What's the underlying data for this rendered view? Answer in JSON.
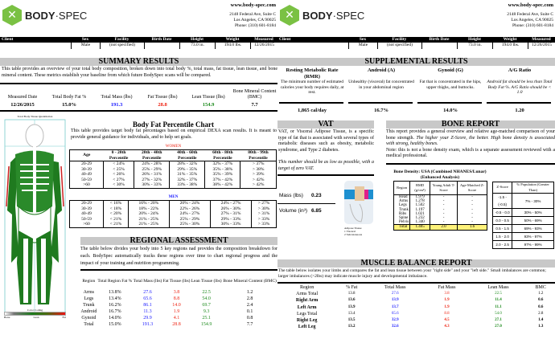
{
  "header": {
    "brand_bold": "BODY",
    "brand_light": "·SPEC",
    "website": "www.body-spec.com",
    "address1": "2148 Federal Ave, Suite C",
    "address2": "Los Angeles, CA 90025",
    "phone": "Phone: (310) 601-8184"
  },
  "client": {
    "headers": [
      "Client",
      "Sex",
      "Facility",
      "Birth Date",
      "Height",
      "Weight",
      "Measured"
    ],
    "values": [
      "",
      "Male",
      "(not specified)",
      "",
      "73.0 in.",
      "194.0 lbs.",
      "12/26/2015"
    ]
  },
  "summary": {
    "title": "SUMMARY RESULTS",
    "text": "This table provides an overview of your total body composition, broken down into total body %, total mass, fat tissue, lean tissue, and bone mineral content. These metrics establish your baseline from which future BodySpec scans will be compared.",
    "headers": [
      "Measured Date",
      "Total Body Fat %",
      "Total Mass (lbs)",
      "Fat Tissue (lbs)",
      "Lean Tissue (lbs)",
      "Bone Mineral Content (BMC)"
    ],
    "values": [
      "12/26/2015",
      "15.0%",
      "191.3",
      "28.8",
      "154.9",
      "7.7"
    ]
  },
  "scan": {
    "title": "Total Body Tissue Quantitation",
    "color_coding": "Color Coding",
    "legend": [
      "Bone",
      "Lean",
      "Fat"
    ]
  },
  "percentile": {
    "title": "Body Fat Percentile Chart",
    "text": "This table provides target body fat percentages based on empirical DEXA scan results. It is meant to provide general guidance for individuals, and to help set goals.",
    "women_label": "WOMEN",
    "men_label": "MEN",
    "headers": [
      "Age",
      "0 - 20th Percentile",
      "20th - 40th Percentile",
      "40th - 60th Percentile",
      "60th - 80th Percentile",
      "80th - 99th Percentile"
    ],
    "women": [
      [
        "20-29",
        "< 24%",
        "24% - 28%",
        "28% - 32%",
        "32% - 37%",
        "> 37%"
      ],
      [
        "30-39",
        "< 25%",
        "25% - 29%",
        "29% - 35%",
        "35% - 38%",
        "> 38%"
      ],
      [
        "40-49",
        "< 26%",
        "26% - 31%",
        "31% - 35%",
        "35% - 39%",
        "> 39%"
      ],
      [
        "50-59",
        "< 27%",
        "27% - 32%",
        "32% - 37%",
        "37% - 42%",
        "> 42%"
      ],
      [
        ">60",
        "< 30%",
        "30% - 33%",
        "33% - 38%",
        "38% - 42%",
        "> 42%"
      ]
    ],
    "men": [
      [
        "20-29",
        "< 16%",
        "16% - 20%",
        "20% - 24%",
        "24% - 27%",
        "> 27%"
      ],
      [
        "30-39",
        "< 18%",
        "18% - 22%",
        "22% - 26%",
        "26% - 30%",
        "> 30%"
      ],
      [
        "40-49",
        "< 20%",
        "20% - 24%",
        "24% - 27%",
        "27% - 31%",
        "> 31%"
      ],
      [
        "50-59",
        "< 21%",
        "21% - 25%",
        "25% - 29%",
        "29% - 33%",
        "> 33%"
      ],
      [
        ">60",
        "< 21%",
        "21% - 25%",
        "25% - 30%",
        "30% - 33%",
        "> 33%"
      ]
    ]
  },
  "regional": {
    "title": "REGIONAL ASSESSMENT",
    "text": "The table below divides your body into 5 key regions nad provides the composition breakdown for each. BodySpec automatically tracks these regions over time to chart regional progress and the impact of your training and nutrition programming.",
    "headers": [
      "Region",
      "Total Region Fat %",
      "Total Mass (lbs)",
      "Fat Tissue (lbs)",
      "Lean Tissue (lbs)",
      "Bone Mineral Content (BMC)"
    ],
    "rows": [
      [
        "Arms",
        "13.8%",
        "27.6",
        "3.8",
        "22.5",
        "1.2"
      ],
      [
        "Legs",
        "13.4%",
        "65.6",
        "8.8",
        "54.0",
        "2.8"
      ],
      [
        "Trunk",
        "16.2%",
        "86.1",
        "14.0",
        "69.7",
        "2.4"
      ],
      [
        "Android",
        "16.7%",
        "11.3",
        "1.9",
        "9.3",
        "0.1"
      ],
      [
        "Gynoid",
        "14.0%",
        "29.9",
        "4.1",
        "25.1",
        "0.8"
      ],
      [
        "Total",
        "15.0%",
        "191.3",
        "28.8",
        "154.9",
        "7.7"
      ]
    ]
  },
  "supplemental": {
    "title": "SUPPLEMENTAL RESULTS",
    "cols": [
      {
        "title": "Resting Metabolic Rate (RMR)",
        "desc": "The minimum number of estimated calories your body requires daily, at rest.",
        "value": "1,865 cal/day"
      },
      {
        "title": "Android (A)",
        "desc": "Unhealthy (visceral) fat concentrated in your abdominal region",
        "value": "16.7%"
      },
      {
        "title": "Gynoid (G)",
        "desc": "Fat that is concentrated in the hips, upper thighs, and buttocks.",
        "value": "14.0%"
      },
      {
        "title": "A/G Ratio",
        "desc": "Android fat should be less than Total Body Fat %. A/G Ratio should be < 1.0",
        "value": "1.20"
      }
    ]
  },
  "vat": {
    "title": "VAT",
    "text": "VAT, or Visceral Adipose Tissue, is a specific type of fat that is associated with several types of metabolic diseases such as obesity, metabolic syndrome, and Type 2 diabetes.",
    "note": "This number should be as low as possible, with a target of zero VAT.",
    "mass_label": "Mass (lbs)",
    "mass": "0.23",
    "volume_label": "Volume (in³)",
    "volume": "6.85",
    "legend_title": "Adipose Tissue",
    "legend": [
      "1  Visceral",
      "2  Subcutaneous"
    ]
  },
  "bone": {
    "title": "BONE REPORT",
    "text1": "This report provides a general overview and relative age-matched comparison of your bone strength.",
    "text_italic": "The higher your Z-Score, the better. High bone density is associated with strong, healthy bones.",
    "note": "Note: this is not a bone density exam, which is a separate assessment reviewed with a medical professional.",
    "table_title": "Bone Density: USA (Combined NHANES/Lunar) (Enhanced Analysis)",
    "headers": [
      "Region",
      "BMD (g/cm²)",
      "Young Adult T-Score",
      "Age-Matched Z-Score"
    ],
    "rows": [
      [
        "Head",
        "1.979",
        "-",
        "-"
      ],
      [
        "Arms",
        "1.278",
        "-",
        "-"
      ],
      [
        "Legs",
        "1.502",
        "-",
        "-"
      ],
      [
        "Trunk",
        "1.197",
        "-",
        "-"
      ],
      [
        "Ribs",
        "1.021",
        "-",
        "-"
      ],
      [
        "Spine",
        "1.232",
        "-",
        "-"
      ],
      [
        "Pelvis",
        "1.340",
        "-",
        "-"
      ],
      [
        "Total",
        "1.405",
        "2.0",
        "1.6"
      ]
    ],
    "z_headers": [
      "Z-Score",
      "% Population (Greater Than)"
    ],
    "z_rows": [
      [
        "-1.5 - (-0.5)",
        "7% - 30%"
      ],
      [
        "-0.5 - 0.0",
        "30% - 50%"
      ],
      [
        "0.0 - 0.5",
        "50% - 69%"
      ],
      [
        "0.5 - 1.5",
        "69% - 93%"
      ],
      [
        "1.5 - 2.0",
        "93% - 97%"
      ],
      [
        "2.0 - 2.5",
        "97% - 99%"
      ]
    ]
  },
  "muscle": {
    "title": "MUSCLE BALANCE REPORT",
    "text": "The table below isolates your limbs and compares the fat and lean tissue between your \"right side\" and your \"left side.\" Small imbalances are common; larger imbalances (>2lbs) may indicate muscle injury and developmental imbalance.",
    "headers": [
      "Region",
      "% Fat",
      "Total Mass",
      "Fat Mass",
      "Lean Mass",
      "BMC"
    ],
    "rows": [
      [
        "Arms Total",
        "13.8",
        "27.6",
        "3.8",
        "22.5",
        "1.2"
      ],
      [
        "Right Arm",
        "13.6",
        "13.9",
        "1.9",
        "11.4",
        "0.6"
      ],
      [
        "Left Arm",
        "13.9",
        "13.7",
        "1.9",
        "11.1",
        "0.6"
      ],
      [
        "Legs Total",
        "13.4",
        "65.6",
        "8.8",
        "54.0",
        "2.8"
      ],
      [
        "Right Leg",
        "13.5",
        "32.9",
        "4.5",
        "27.1",
        "1.4"
      ],
      [
        "Left Leg",
        "13.2",
        "32.6",
        "4.3",
        "27.0",
        "1.3"
      ]
    ]
  },
  "colors": {
    "brand_green": "#7ac143",
    "mass": "#1a1aff",
    "fat": "#ee2211",
    "lean": "#1b8a1b",
    "section_bg": "#c8c8c8",
    "total_highlight": "#fff27a"
  }
}
